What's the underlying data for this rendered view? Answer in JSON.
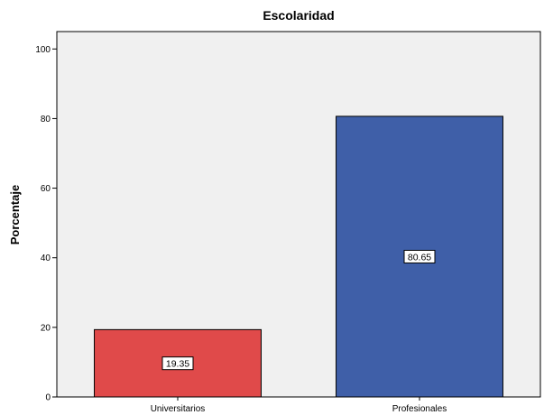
{
  "chart_data": {
    "type": "bar",
    "title": "Escolaridad",
    "xlabel": "",
    "ylabel": "Porcentaje",
    "categories": [
      "Universitarios",
      "Profesionales"
    ],
    "values": [
      19.35,
      80.65
    ],
    "data_labels": [
      "19.35",
      "80.65"
    ],
    "bar_colors": [
      "#e04a4a",
      "#3f5fa8"
    ],
    "plot_background": "#f0f0f0",
    "ylim": [
      0,
      105
    ],
    "yticks": [
      0,
      20,
      40,
      60,
      80,
      100
    ],
    "ytick_labels": [
      "0",
      "20",
      "40",
      "60",
      "80",
      "100"
    ],
    "grid": false,
    "legend": "none"
  }
}
